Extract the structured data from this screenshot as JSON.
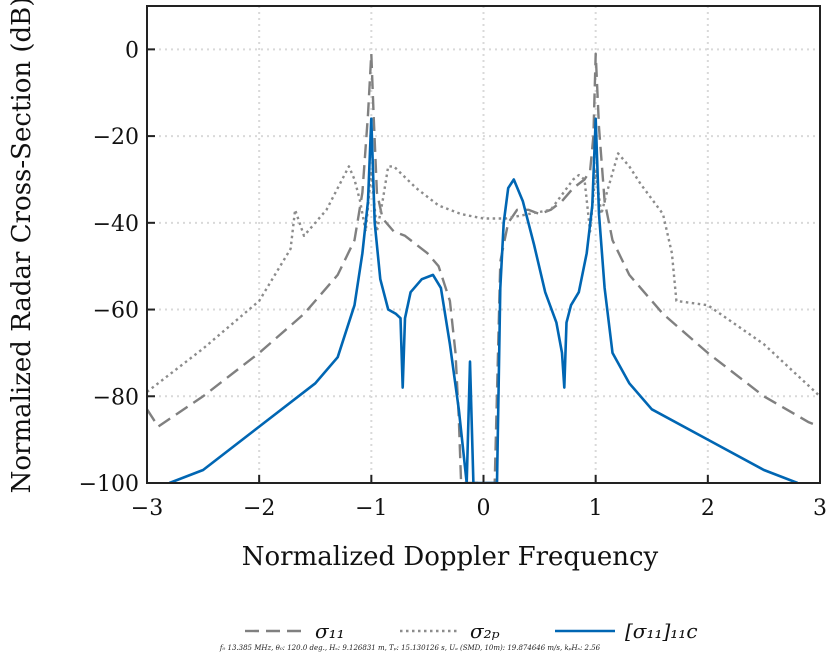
{
  "chart_data": {
    "type": "line",
    "xlabel": "Normalized Doppler Frequency",
    "ylabel": "Normalized Radar Cross-Section (dB)",
    "xlim": [
      -3,
      3
    ],
    "ylim": [
      -100,
      10
    ],
    "xticks": [
      -3,
      -2,
      -1,
      0,
      1,
      2,
      3
    ],
    "xtick_labels": [
      "−3",
      "−2",
      "−1",
      "0",
      "1",
      "2",
      "3"
    ],
    "yticks": [
      0,
      -20,
      -40,
      -60,
      -80,
      -100
    ],
    "ytick_labels": [
      "0",
      "−20",
      "−40",
      "−60",
      "−80",
      "−100"
    ],
    "grid": true,
    "legend_position": "bottom",
    "footnote": "f₀ 13.385 MHz, θ₀: 120.0 deg., Hₛ: 9.126831 m, Tₚ: 15.130126 s, Uₐ (SMD, 10m): 19.874646 m/s, kₚHₛ: 2.56",
    "series": [
      {
        "name": "σ₁₁",
        "style": "dashed",
        "color": "#808080",
        "x": [
          -3.0,
          -2.9,
          -2.5,
          -2.0,
          -1.6,
          -1.3,
          -1.15,
          -1.08,
          -1.03,
          -1.0,
          -0.98,
          -0.95,
          -0.9,
          -0.8,
          -0.7,
          -0.6,
          -0.5,
          -0.4,
          -0.3,
          -0.25,
          -0.22,
          -0.2,
          -0.1,
          0.1,
          0.15,
          0.18,
          0.22,
          0.3,
          0.4,
          0.5,
          0.6,
          0.7,
          0.8,
          0.9,
          0.95,
          0.98,
          1.0,
          1.03,
          1.08,
          1.15,
          1.3,
          1.6,
          2.0,
          2.5,
          2.9,
          3.0
        ],
        "y": [
          -83,
          -87,
          -80,
          -70,
          -61,
          -52,
          -44,
          -33,
          -15,
          -1,
          -15,
          -33,
          -39,
          -42,
          -43,
          -45,
          -47,
          -50,
          -58,
          -70,
          -85,
          -100,
          -100,
          -100,
          -49,
          -45,
          -40,
          -37,
          -37,
          -38,
          -37,
          -35,
          -32,
          -30,
          -28,
          -20,
          -1,
          -18,
          -35,
          -44,
          -52,
          -61,
          -70,
          -80,
          -86,
          -87
        ]
      },
      {
        "name": "σ₂ₚ",
        "style": "dotted",
        "color": "#8c8c8c",
        "x": [
          -3.0,
          -2.5,
          -2.0,
          -1.72,
          -1.68,
          -1.6,
          -1.4,
          -1.2,
          -1.15,
          -1.1,
          -1.05,
          -1.0,
          -0.95,
          -0.9,
          -0.85,
          -0.8,
          -0.6,
          -0.4,
          -0.2,
          0.0,
          0.2,
          0.4,
          0.6,
          0.8,
          0.85,
          0.9,
          0.95,
          1.0,
          1.05,
          1.1,
          1.2,
          1.3,
          1.4,
          1.6,
          1.68,
          1.72,
          2.0,
          2.5,
          3.0
        ],
        "y": [
          -79,
          -69,
          -58,
          -46,
          -37,
          -43,
          -37,
          -27,
          -30,
          -35,
          -42,
          -28,
          -42,
          -35,
          -27,
          -27,
          -32,
          -36,
          -38,
          -39,
          -39,
          -38,
          -37,
          -30,
          -29,
          -30,
          -42,
          -28,
          -38,
          -33,
          -24,
          -27,
          -31,
          -38,
          -47,
          -58,
          -59,
          -68,
          -80
        ]
      },
      {
        "name": "[σ₁₁]₁₁c",
        "style": "solid",
        "color": "#0066b3",
        "x": [
          -2.8,
          -2.5,
          -2.0,
          -1.5,
          -1.3,
          -1.15,
          -1.08,
          -1.03,
          -1.0,
          -0.97,
          -0.92,
          -0.85,
          -0.78,
          -0.74,
          -0.72,
          -0.7,
          -0.65,
          -0.55,
          -0.45,
          -0.38,
          -0.3,
          -0.22,
          -0.15,
          -0.12,
          -0.09,
          -0.06,
          0.12,
          0.15,
          0.18,
          0.22,
          0.27,
          0.35,
          0.45,
          0.55,
          0.65,
          0.7,
          0.72,
          0.74,
          0.78,
          0.85,
          0.92,
          0.97,
          1.0,
          1.03,
          1.08,
          1.15,
          1.3,
          1.5,
          2.0,
          2.5,
          2.8
        ],
        "y": [
          -100,
          -97,
          -87,
          -77,
          -71,
          -59,
          -47,
          -35,
          -16,
          -40,
          -53,
          -60,
          -61,
          -62,
          -78,
          -62,
          -56,
          -53,
          -52,
          -55,
          -68,
          -83,
          -100,
          -72,
          -100,
          -100,
          -100,
          -55,
          -40,
          -32,
          -30,
          -35,
          -45,
          -56,
          -63,
          -70,
          -78,
          -63,
          -59,
          -56,
          -47,
          -36,
          -16,
          -38,
          -55,
          -70,
          -77,
          -83,
          -90,
          -97,
          -100
        ]
      }
    ]
  }
}
